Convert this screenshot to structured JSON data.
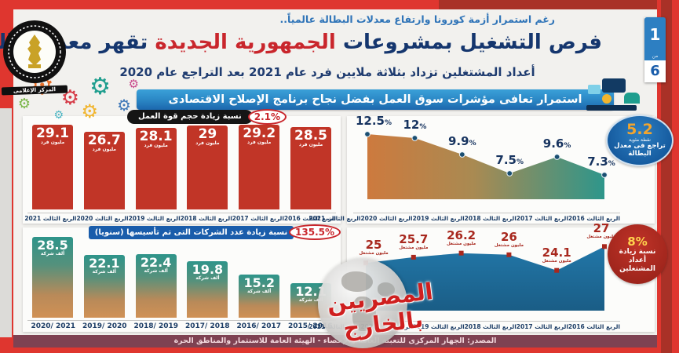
{
  "meta": {
    "page_current": "1",
    "page_separator": "من",
    "page_total": "6"
  },
  "colors": {
    "frame_red": "#df362f",
    "dark_red": "#a93127",
    "navy": "#15366e",
    "accent_red": "#c9262c",
    "banner_blue": "#2d8bc8",
    "bar_red": "#c13527",
    "teal": "#2e948a",
    "orange": "#cf8a4a",
    "area_blue": "#1f6d9d",
    "badge_blue": "#1861a8",
    "badge_red": "#ab231b",
    "badge_yellow": "#ffd34d"
  },
  "header": {
    "topline": "رغم استمرار أزمة كورونا وارتفاع معدلات البطالة عالمياً..",
    "title_pre": "فرص التشغيل بمشروعات ",
    "title_highlight": "الجمهورية الجديدة",
    "title_post": " تقهر معدلات البطالة",
    "subtitle": "أعداد المشتغلين تزداد بثلاثة ملايين فرد عام 2021 بعد التراجع عام 2020",
    "logo_caption": "المركز الإعلامى"
  },
  "banner": {
    "text": "استمرار تعافى مؤشرات سوق العمل بفضل نجاح برنامج الإصلاح الاقتصادى"
  },
  "watermark": {
    "text": "المصريين بالخارج"
  },
  "footer": {
    "source": "المصدر: الجهاز المركزى للتعبئة العامة والإحصاء - الهيئة العامة للاستثمار والمناطق الحرة"
  },
  "chart_data": [
    {
      "id": "labor-force",
      "type": "bar",
      "title": "نسبة زيادة حجم قوة العمل",
      "badge": "2.1%",
      "unit": "مليون فرد",
      "categories": [
        "الربع الثالث 2016",
        "الربع الثالث 2017",
        "الربع الثالث 2018",
        "الربع الثالث 2019",
        "الربع الثالث 2020",
        "الربع الثالث 2021"
      ],
      "values": [
        28.5,
        29.2,
        29,
        28.1,
        26.7,
        29.1
      ],
      "labels": [
        "28.5",
        "29.2",
        "29",
        "28.1",
        "26.7",
        "29.1"
      ],
      "ymax": 29.5,
      "grid": false,
      "legend": "none"
    },
    {
      "id": "unemployment-rate",
      "type": "area",
      "badge": {
        "value": "5.2",
        "sub": "نقطة مئوية",
        "label": "تراجع فى معدل البطالة"
      },
      "categories": [
        "الربع الثالث 2016",
        "الربع الثالث 2017",
        "الربع الثالث 2018",
        "الربع الثالث 2019",
        "الربع الثالث 2020",
        "الربع الثالث 2021"
      ],
      "values": [
        12.5,
        12,
        9.9,
        7.5,
        9.6,
        7.3
      ],
      "labels": [
        "12.5",
        "12",
        "9.9",
        "7.5",
        "9.6",
        "7.3"
      ],
      "value_suffix": "%",
      "ylim": [
        6.6,
        13.2
      ],
      "padl": 18,
      "padr": 20,
      "top": 10,
      "bot": 76,
      "dot": "circle",
      "dotColor": "#1b4f72",
      "grid": false,
      "legend": "none"
    },
    {
      "id": "new-companies",
      "type": "bar",
      "title": "نسبة زيادة عدد الشركات التى تم تأسيسها (سنويا)",
      "badge": "135.5%",
      "unit": "ألف شركة",
      "categories": [
        "2015/ 2016",
        "2016/ 2017",
        "2017/ 2018",
        "2018/ 2019",
        "2019/ 2020",
        "2020/ 2021"
      ],
      "values": [
        12.1,
        15.2,
        19.8,
        22.4,
        22.1,
        28.5
      ],
      "labels": [
        "12.1",
        "15.2",
        "19.8",
        "22.4",
        "22.1",
        "28.5"
      ],
      "ymax": 29,
      "grid": false,
      "legend": "none"
    },
    {
      "id": "employed-count",
      "type": "area",
      "badge": {
        "value": "8%",
        "label": "نسبة زيادة أعداد المشتغلين"
      },
      "unit": "مليون مشتغل",
      "categories": [
        "الربع الثالث 2016",
        "الربع الثالث 2017",
        "الربع الثالث 2018",
        "الربع الثالث 2019",
        "الربع الثالث 2020",
        "الربع الثالث 2021"
      ],
      "values": [
        25,
        25.7,
        26.2,
        26,
        24.1,
        27
      ],
      "labels": [
        "25",
        "25.7",
        "26.2",
        "26",
        "24.1",
        "27"
      ],
      "ylim": [
        23.4,
        27.6
      ],
      "padl": 16,
      "padr": 20,
      "top": 12,
      "bot": 56,
      "dot": "square",
      "dotColor": "#a8281e",
      "grid": false,
      "legend": "none"
    }
  ]
}
